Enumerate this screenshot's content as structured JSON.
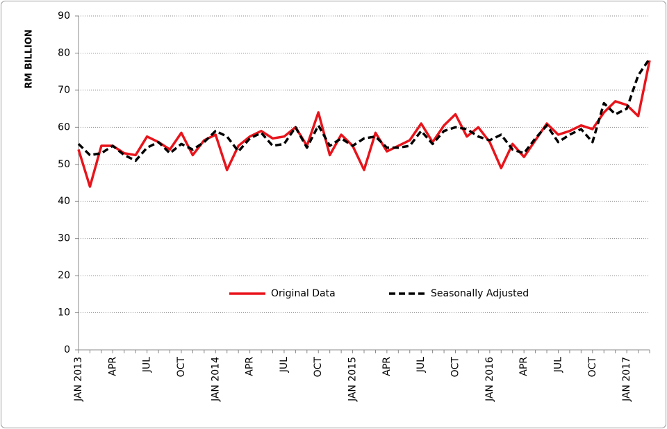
{
  "chart_data": {
    "type": "line",
    "y_label": "RM BILLION",
    "categories": [
      "JAN 2013",
      null,
      null,
      "APR",
      null,
      null,
      "JUL",
      null,
      null,
      "OCT",
      null,
      null,
      "JAN 2014",
      null,
      null,
      "APR",
      null,
      null,
      "JUL",
      null,
      null,
      "OCT",
      null,
      null,
      "JAN 2015",
      null,
      null,
      "APR",
      null,
      null,
      "JUL",
      null,
      null,
      "OCT",
      null,
      null,
      "JAN 2016",
      null,
      null,
      "APR",
      null,
      null,
      "JUL",
      null,
      null,
      "OCT",
      null,
      null,
      "JAN 2017",
      null,
      null
    ],
    "series": [
      {
        "name": "Original Data",
        "color": "#e8141b",
        "dash": false,
        "values": [
          54,
          44,
          55,
          55,
          53,
          52.5,
          57.5,
          56,
          54,
          58.5,
          52.5,
          56.5,
          58,
          48.5,
          55,
          57.5,
          59,
          57,
          57.5,
          60,
          55,
          64,
          52.5,
          58,
          55,
          48.5,
          58.5,
          53.5,
          55,
          56.5,
          61,
          56,
          60.5,
          63.5,
          57.5,
          60,
          56,
          49,
          55.5,
          52,
          56.5,
          61,
          58,
          59,
          60.5,
          59.5,
          64,
          67,
          66,
          63,
          78
        ]
      },
      {
        "name": "Seasonally Adjusted",
        "color": "#000000",
        "dash": true,
        "values": [
          55.5,
          52.5,
          53,
          55,
          52.5,
          51,
          54.5,
          56,
          53,
          55.5,
          54,
          56,
          59,
          57.5,
          53.5,
          57,
          58.5,
          55,
          55.5,
          60,
          54.5,
          60.5,
          55,
          57,
          55,
          57,
          57.5,
          54.5,
          54.5,
          55,
          59,
          55.5,
          59,
          60,
          59.5,
          57.5,
          56.5,
          58,
          54,
          53,
          57,
          60.5,
          56,
          58,
          59.5,
          56,
          66.5,
          63.5,
          65,
          74,
          78.5
        ]
      }
    ],
    "ylim": [
      0,
      90
    ],
    "yticks": [
      0,
      10,
      20,
      30,
      40,
      50,
      60,
      70,
      80,
      90
    ],
    "grid": true
  }
}
